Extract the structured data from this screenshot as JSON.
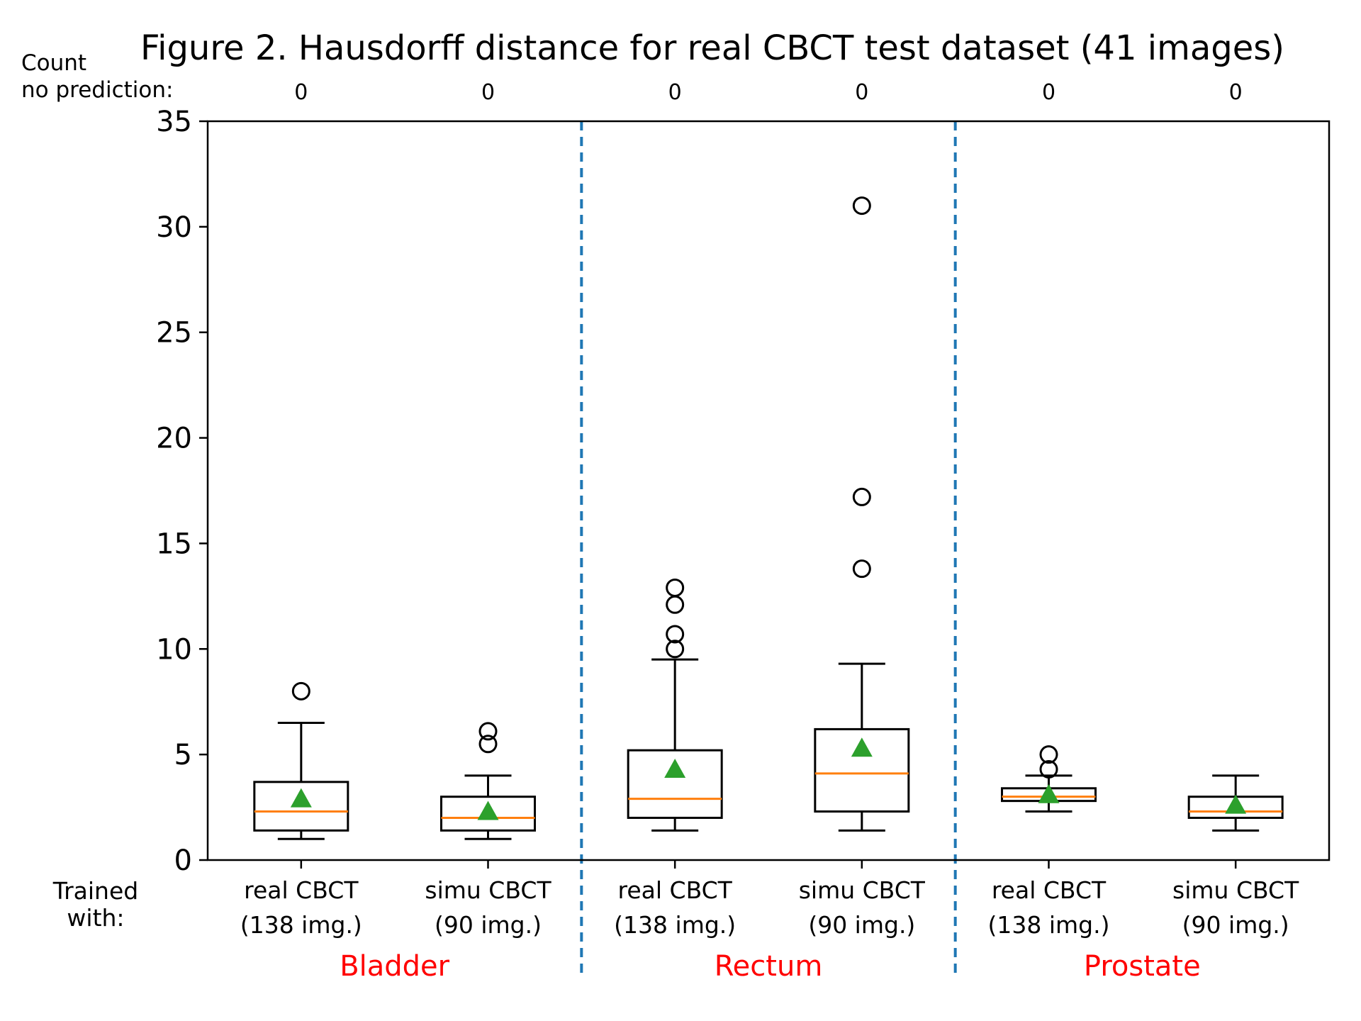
{
  "chart_data": {
    "type": "boxplot",
    "title": "Figure 2. Hausdorff distance for real CBCT test dataset (41 images)",
    "ylim": [
      0,
      35
    ],
    "yticks": [
      0,
      5,
      10,
      15,
      20,
      25,
      30,
      35
    ],
    "count_label": [
      "Count",
      "no prediction:"
    ],
    "trained_label": [
      "Trained",
      "with:"
    ],
    "colors": {
      "box": "#000000",
      "median": "#ff7f0e",
      "mean_marker": "#2ca02c",
      "separator": "#1f77b4",
      "group_label": "#ff0000"
    },
    "groups": [
      "Bladder",
      "Rectum",
      "Prostate"
    ],
    "boxes": [
      {
        "group": "Bladder",
        "label_line1": "real CBCT",
        "label_line2": "(138 img.)",
        "count_no_prediction": "0",
        "whisker_low": 1.0,
        "q1": 1.4,
        "median": 2.3,
        "q3": 3.7,
        "whisker_high": 6.5,
        "mean": 2.9,
        "outliers": [
          8.0
        ]
      },
      {
        "group": "Bladder",
        "label_line1": "simu CBCT",
        "label_line2": "(90 img.)",
        "count_no_prediction": "0",
        "whisker_low": 1.0,
        "q1": 1.4,
        "median": 2.0,
        "q3": 3.0,
        "whisker_high": 4.0,
        "mean": 2.3,
        "outliers": [
          5.5,
          6.1
        ]
      },
      {
        "group": "Rectum",
        "label_line1": "real CBCT",
        "label_line2": "(138 img.)",
        "count_no_prediction": "0",
        "whisker_low": 1.4,
        "q1": 2.0,
        "median": 2.9,
        "q3": 5.2,
        "whisker_high": 9.5,
        "mean": 4.3,
        "outliers": [
          10.0,
          10.7,
          12.1,
          12.9
        ]
      },
      {
        "group": "Rectum",
        "label_line1": "simu CBCT",
        "label_line2": "(90 img.)",
        "count_no_prediction": "0",
        "whisker_low": 1.4,
        "q1": 2.3,
        "median": 4.1,
        "q3": 6.2,
        "whisker_high": 9.3,
        "mean": 5.3,
        "outliers": [
          13.8,
          17.2,
          31.0
        ]
      },
      {
        "group": "Prostate",
        "label_line1": "real CBCT",
        "label_line2": "(138 img.)",
        "count_no_prediction": "0",
        "whisker_low": 2.3,
        "q1": 2.8,
        "median": 3.0,
        "q3": 3.4,
        "whisker_high": 4.0,
        "mean": 3.1,
        "outliers": [
          4.3,
          5.0
        ]
      },
      {
        "group": "Prostate",
        "label_line1": "simu CBCT",
        "label_line2": "(90 img.)",
        "count_no_prediction": "0",
        "whisker_low": 1.4,
        "q1": 2.0,
        "median": 2.3,
        "q3": 3.0,
        "whisker_high": 4.0,
        "mean": 2.6,
        "outliers": []
      }
    ]
  }
}
